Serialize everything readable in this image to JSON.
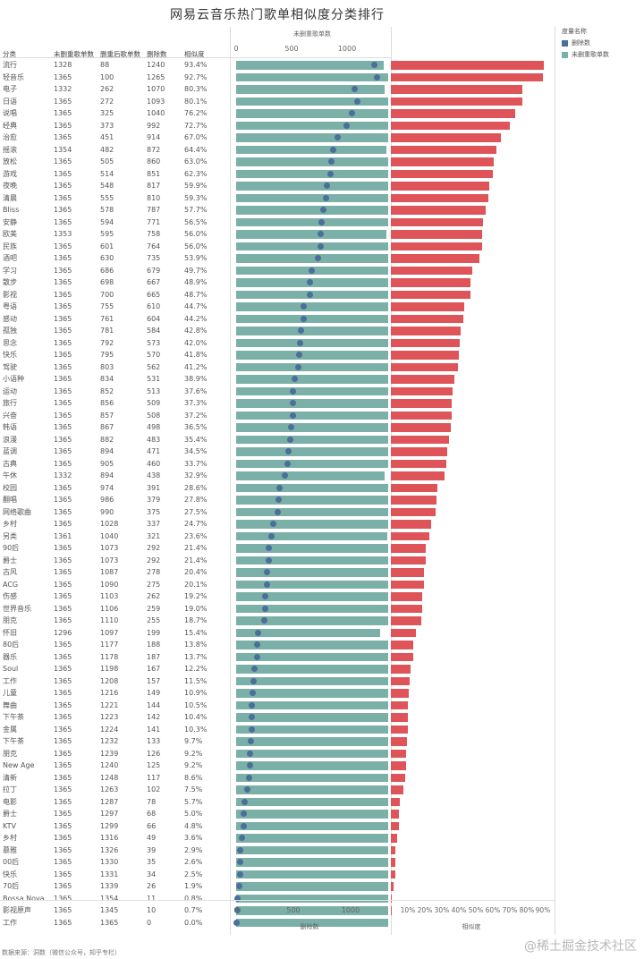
{
  "title": "网易云音乐热门歌单相似度分类排行",
  "legend": {
    "title": "度量名称",
    "items": [
      {
        "label": "删除数",
        "color": "#4b6f98"
      },
      {
        "label": "未删重歌单数",
        "color": "#7ab0a8"
      }
    ]
  },
  "headers": {
    "category": "分类",
    "total": "未删重歌单数",
    "dedup": "删重后歌单数",
    "deleted": "删除数",
    "similarity": "相似度"
  },
  "top_axis": {
    "title": "未删重歌单数",
    "ticks": [
      "0",
      "500",
      "1000"
    ]
  },
  "bottom_axis": {
    "title": "删除数",
    "ticks": [
      "0",
      "500",
      "1000"
    ]
  },
  "pct_axis": {
    "title": "相似度",
    "ticks": [
      "10%",
      "20%",
      "30%",
      "40%",
      "50%",
      "60%",
      "70%",
      "80%",
      "90%"
    ]
  },
  "source": "数据来源：洞数（微信公众号，知乎专栏）",
  "watermark": "@稀土掘金技术社区",
  "colors": {
    "teal": "#7ab0a8",
    "blue": "#4b6f98",
    "red": "#de5458"
  },
  "chart_data": {
    "type": "bar",
    "scale_max": 1400,
    "similarity_max": 100,
    "columns": [
      "分类",
      "未删重歌单数",
      "删重后歌单数",
      "删除数",
      "相似度"
    ],
    "rows": [
      {
        "category": "流行",
        "total": 1328,
        "dedup": 88,
        "deleted": 1240,
        "sim": "93.4%"
      },
      {
        "category": "轻音乐",
        "total": 1365,
        "dedup": 100,
        "deleted": 1265,
        "sim": "92.7%"
      },
      {
        "category": "电子",
        "total": 1332,
        "dedup": 262,
        "deleted": 1070,
        "sim": "80.3%"
      },
      {
        "category": "日语",
        "total": 1365,
        "dedup": 272,
        "deleted": 1093,
        "sim": "80.1%"
      },
      {
        "category": "说唱",
        "total": 1365,
        "dedup": 325,
        "deleted": 1040,
        "sim": "76.2%"
      },
      {
        "category": "经典",
        "total": 1365,
        "dedup": 373,
        "deleted": 992,
        "sim": "72.7%"
      },
      {
        "category": "治愈",
        "total": 1365,
        "dedup": 451,
        "deleted": 914,
        "sim": "67.0%"
      },
      {
        "category": "摇滚",
        "total": 1354,
        "dedup": 482,
        "deleted": 872,
        "sim": "64.4%"
      },
      {
        "category": "放松",
        "total": 1365,
        "dedup": 505,
        "deleted": 860,
        "sim": "63.0%"
      },
      {
        "category": "游戏",
        "total": 1365,
        "dedup": 514,
        "deleted": 851,
        "sim": "62.3%"
      },
      {
        "category": "夜晚",
        "total": 1365,
        "dedup": 548,
        "deleted": 817,
        "sim": "59.9%"
      },
      {
        "category": "清晨",
        "total": 1365,
        "dedup": 555,
        "deleted": 810,
        "sim": "59.3%"
      },
      {
        "category": "Bliss",
        "total": 1365,
        "dedup": 578,
        "deleted": 787,
        "sim": "57.7%"
      },
      {
        "category": "安静",
        "total": 1365,
        "dedup": 594,
        "deleted": 771,
        "sim": "56.5%"
      },
      {
        "category": "欧美",
        "total": 1353,
        "dedup": 595,
        "deleted": 758,
        "sim": "56.0%"
      },
      {
        "category": "民族",
        "total": 1365,
        "dedup": 601,
        "deleted": 764,
        "sim": "56.0%"
      },
      {
        "category": "酒吧",
        "total": 1365,
        "dedup": 630,
        "deleted": 735,
        "sim": "53.9%"
      },
      {
        "category": "学习",
        "total": 1365,
        "dedup": 686,
        "deleted": 679,
        "sim": "49.7%"
      },
      {
        "category": "散步",
        "total": 1365,
        "dedup": 698,
        "deleted": 667,
        "sim": "48.9%"
      },
      {
        "category": "影视",
        "total": 1365,
        "dedup": 700,
        "deleted": 665,
        "sim": "48.7%"
      },
      {
        "category": "粤语",
        "total": 1365,
        "dedup": 755,
        "deleted": 610,
        "sim": "44.7%"
      },
      {
        "category": "感动",
        "total": 1365,
        "dedup": 761,
        "deleted": 604,
        "sim": "44.2%"
      },
      {
        "category": "孤独",
        "total": 1365,
        "dedup": 781,
        "deleted": 584,
        "sim": "42.8%"
      },
      {
        "category": "思念",
        "total": 1365,
        "dedup": 792,
        "deleted": 573,
        "sim": "42.0%"
      },
      {
        "category": "快乐",
        "total": 1365,
        "dedup": 795,
        "deleted": 570,
        "sim": "41.8%"
      },
      {
        "category": "驾驶",
        "total": 1365,
        "dedup": 803,
        "deleted": 562,
        "sim": "41.2%"
      },
      {
        "category": "小语种",
        "total": 1365,
        "dedup": 834,
        "deleted": 531,
        "sim": "38.9%"
      },
      {
        "category": "运动",
        "total": 1365,
        "dedup": 852,
        "deleted": 513,
        "sim": "37.6%"
      },
      {
        "category": "旅行",
        "total": 1365,
        "dedup": 856,
        "deleted": 509,
        "sim": "37.3%"
      },
      {
        "category": "兴奋",
        "total": 1365,
        "dedup": 857,
        "deleted": 508,
        "sim": "37.2%"
      },
      {
        "category": "韩语",
        "total": 1365,
        "dedup": 867,
        "deleted": 498,
        "sim": "36.5%"
      },
      {
        "category": "浪漫",
        "total": 1365,
        "dedup": 882,
        "deleted": 483,
        "sim": "35.4%"
      },
      {
        "category": "蓝调",
        "total": 1365,
        "dedup": 894,
        "deleted": 471,
        "sim": "34.5%"
      },
      {
        "category": "古典",
        "total": 1365,
        "dedup": 905,
        "deleted": 460,
        "sim": "33.7%"
      },
      {
        "category": "午休",
        "total": 1332,
        "dedup": 894,
        "deleted": 438,
        "sim": "32.9%"
      },
      {
        "category": "校园",
        "total": 1365,
        "dedup": 974,
        "deleted": 391,
        "sim": "28.6%"
      },
      {
        "category": "翻唱",
        "total": 1365,
        "dedup": 986,
        "deleted": 379,
        "sim": "27.8%"
      },
      {
        "category": "网络歌曲",
        "total": 1365,
        "dedup": 990,
        "deleted": 375,
        "sim": "27.5%"
      },
      {
        "category": "乡村",
        "total": 1365,
        "dedup": 1028,
        "deleted": 337,
        "sim": "24.7%"
      },
      {
        "category": "另类",
        "total": 1361,
        "dedup": 1040,
        "deleted": 321,
        "sim": "23.6%"
      },
      {
        "category": "90后",
        "total": 1365,
        "dedup": 1073,
        "deleted": 292,
        "sim": "21.4%"
      },
      {
        "category": "爵士",
        "total": 1365,
        "dedup": 1073,
        "deleted": 292,
        "sim": "21.4%"
      },
      {
        "category": "古风",
        "total": 1365,
        "dedup": 1087,
        "deleted": 278,
        "sim": "20.4%"
      },
      {
        "category": "ACG",
        "total": 1365,
        "dedup": 1090,
        "deleted": 275,
        "sim": "20.1%"
      },
      {
        "category": "伤感",
        "total": 1365,
        "dedup": 1103,
        "deleted": 262,
        "sim": "19.2%"
      },
      {
        "category": "世界音乐",
        "total": 1365,
        "dedup": 1106,
        "deleted": 259,
        "sim": "19.0%"
      },
      {
        "category": "朋克",
        "total": 1365,
        "dedup": 1110,
        "deleted": 255,
        "sim": "18.7%"
      },
      {
        "category": "怀旧",
        "total": 1296,
        "dedup": 1097,
        "deleted": 199,
        "sim": "15.4%"
      },
      {
        "category": "80后",
        "total": 1365,
        "dedup": 1177,
        "deleted": 188,
        "sim": "13.8%"
      },
      {
        "category": "器乐",
        "total": 1365,
        "dedup": 1178,
        "deleted": 187,
        "sim": "13.7%"
      },
      {
        "category": "Soul",
        "total": 1365,
        "dedup": 1198,
        "deleted": 167,
        "sim": "12.2%"
      },
      {
        "category": "工作",
        "total": 1365,
        "dedup": 1208,
        "deleted": 157,
        "sim": "11.5%"
      },
      {
        "category": "儿童",
        "total": 1365,
        "dedup": 1216,
        "deleted": 149,
        "sim": "10.9%"
      },
      {
        "category": "舞曲",
        "total": 1365,
        "dedup": 1221,
        "deleted": 144,
        "sim": "10.5%"
      },
      {
        "category": "下午茶",
        "total": 1365,
        "dedup": 1223,
        "deleted": 142,
        "sim": "10.4%"
      },
      {
        "category": "金属",
        "total": 1365,
        "dedup": 1224,
        "deleted": 141,
        "sim": "10.3%"
      },
      {
        "category": "下午茶",
        "total": 1365,
        "dedup": 1232,
        "deleted": 133,
        "sim": "9.7%"
      },
      {
        "category": "朋克",
        "total": 1365,
        "dedup": 1239,
        "deleted": 126,
        "sim": "9.2%"
      },
      {
        "category": "New Age",
        "total": 1365,
        "dedup": 1240,
        "deleted": 125,
        "sim": "9.2%"
      },
      {
        "category": "清新",
        "total": 1365,
        "dedup": 1248,
        "deleted": 117,
        "sim": "8.6%"
      },
      {
        "category": "拉丁",
        "total": 1365,
        "dedup": 1263,
        "deleted": 102,
        "sim": "7.5%"
      },
      {
        "category": "电影",
        "total": 1365,
        "dedup": 1287,
        "deleted": 78,
        "sim": "5.7%"
      },
      {
        "category": "爵士",
        "total": 1365,
        "dedup": 1297,
        "deleted": 68,
        "sim": "5.0%"
      },
      {
        "category": "KTV",
        "total": 1365,
        "dedup": 1299,
        "deleted": 66,
        "sim": "4.8%"
      },
      {
        "category": "乡村",
        "total": 1365,
        "dedup": 1316,
        "deleted": 49,
        "sim": "3.6%"
      },
      {
        "category": "慕雅",
        "total": 1365,
        "dedup": 1326,
        "deleted": 39,
        "sim": "2.9%"
      },
      {
        "category": "00后",
        "total": 1365,
        "dedup": 1330,
        "deleted": 35,
        "sim": "2.6%"
      },
      {
        "category": "快乐",
        "total": 1365,
        "dedup": 1331,
        "deleted": 34,
        "sim": "2.5%"
      },
      {
        "category": "70后",
        "total": 1365,
        "dedup": 1339,
        "deleted": 26,
        "sim": "1.9%"
      },
      {
        "category": "Bossa Nova",
        "total": 1365,
        "dedup": 1354,
        "deleted": 11,
        "sim": "0.8%"
      },
      {
        "category": "影视原声",
        "total": 1365,
        "dedup": 1345,
        "deleted": 10,
        "sim": "0.7%"
      },
      {
        "category": "工作",
        "total": 1365,
        "dedup": 1365,
        "deleted": 0,
        "sim": "0.0%"
      }
    ]
  }
}
